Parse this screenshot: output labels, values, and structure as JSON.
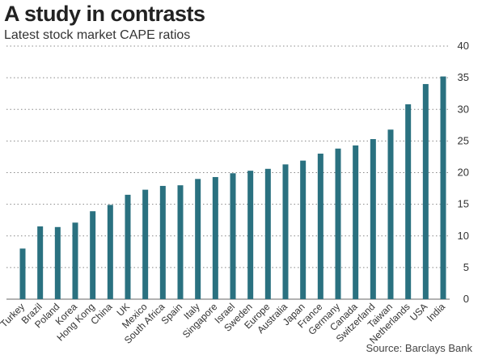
{
  "chart_data": {
    "type": "bar",
    "title": "A study in contrasts",
    "subtitle": "Latest stock market CAPE ratios",
    "source": "Source: Barclays Bank",
    "categories": [
      "Turkey",
      "Brazil",
      "Poland",
      "Korea",
      "Hong Kong",
      "China",
      "UK",
      "Mexico",
      "South Africa",
      "Spain",
      "Italy",
      "Singapore",
      "Israel",
      "Sweden",
      "Europe",
      "Australia",
      "Japan",
      "France",
      "Germany",
      "Canada",
      "Switzerland",
      "Taiwan",
      "Netherlands",
      "USA",
      "India"
    ],
    "values": [
      8.0,
      11.5,
      11.4,
      12.1,
      13.9,
      14.9,
      16.5,
      17.3,
      17.9,
      18.0,
      19.0,
      19.3,
      19.9,
      20.3,
      20.6,
      21.3,
      21.9,
      23.0,
      23.8,
      24.3,
      25.3,
      26.8,
      30.8,
      34.0,
      35.2
    ],
    "ylim": [
      0,
      40
    ],
    "yticks": [
      0,
      5,
      10,
      15,
      20,
      25,
      30,
      35,
      40
    ],
    "grid": true,
    "bar_color": "#2a7180",
    "xlabel": "",
    "ylabel": ""
  }
}
